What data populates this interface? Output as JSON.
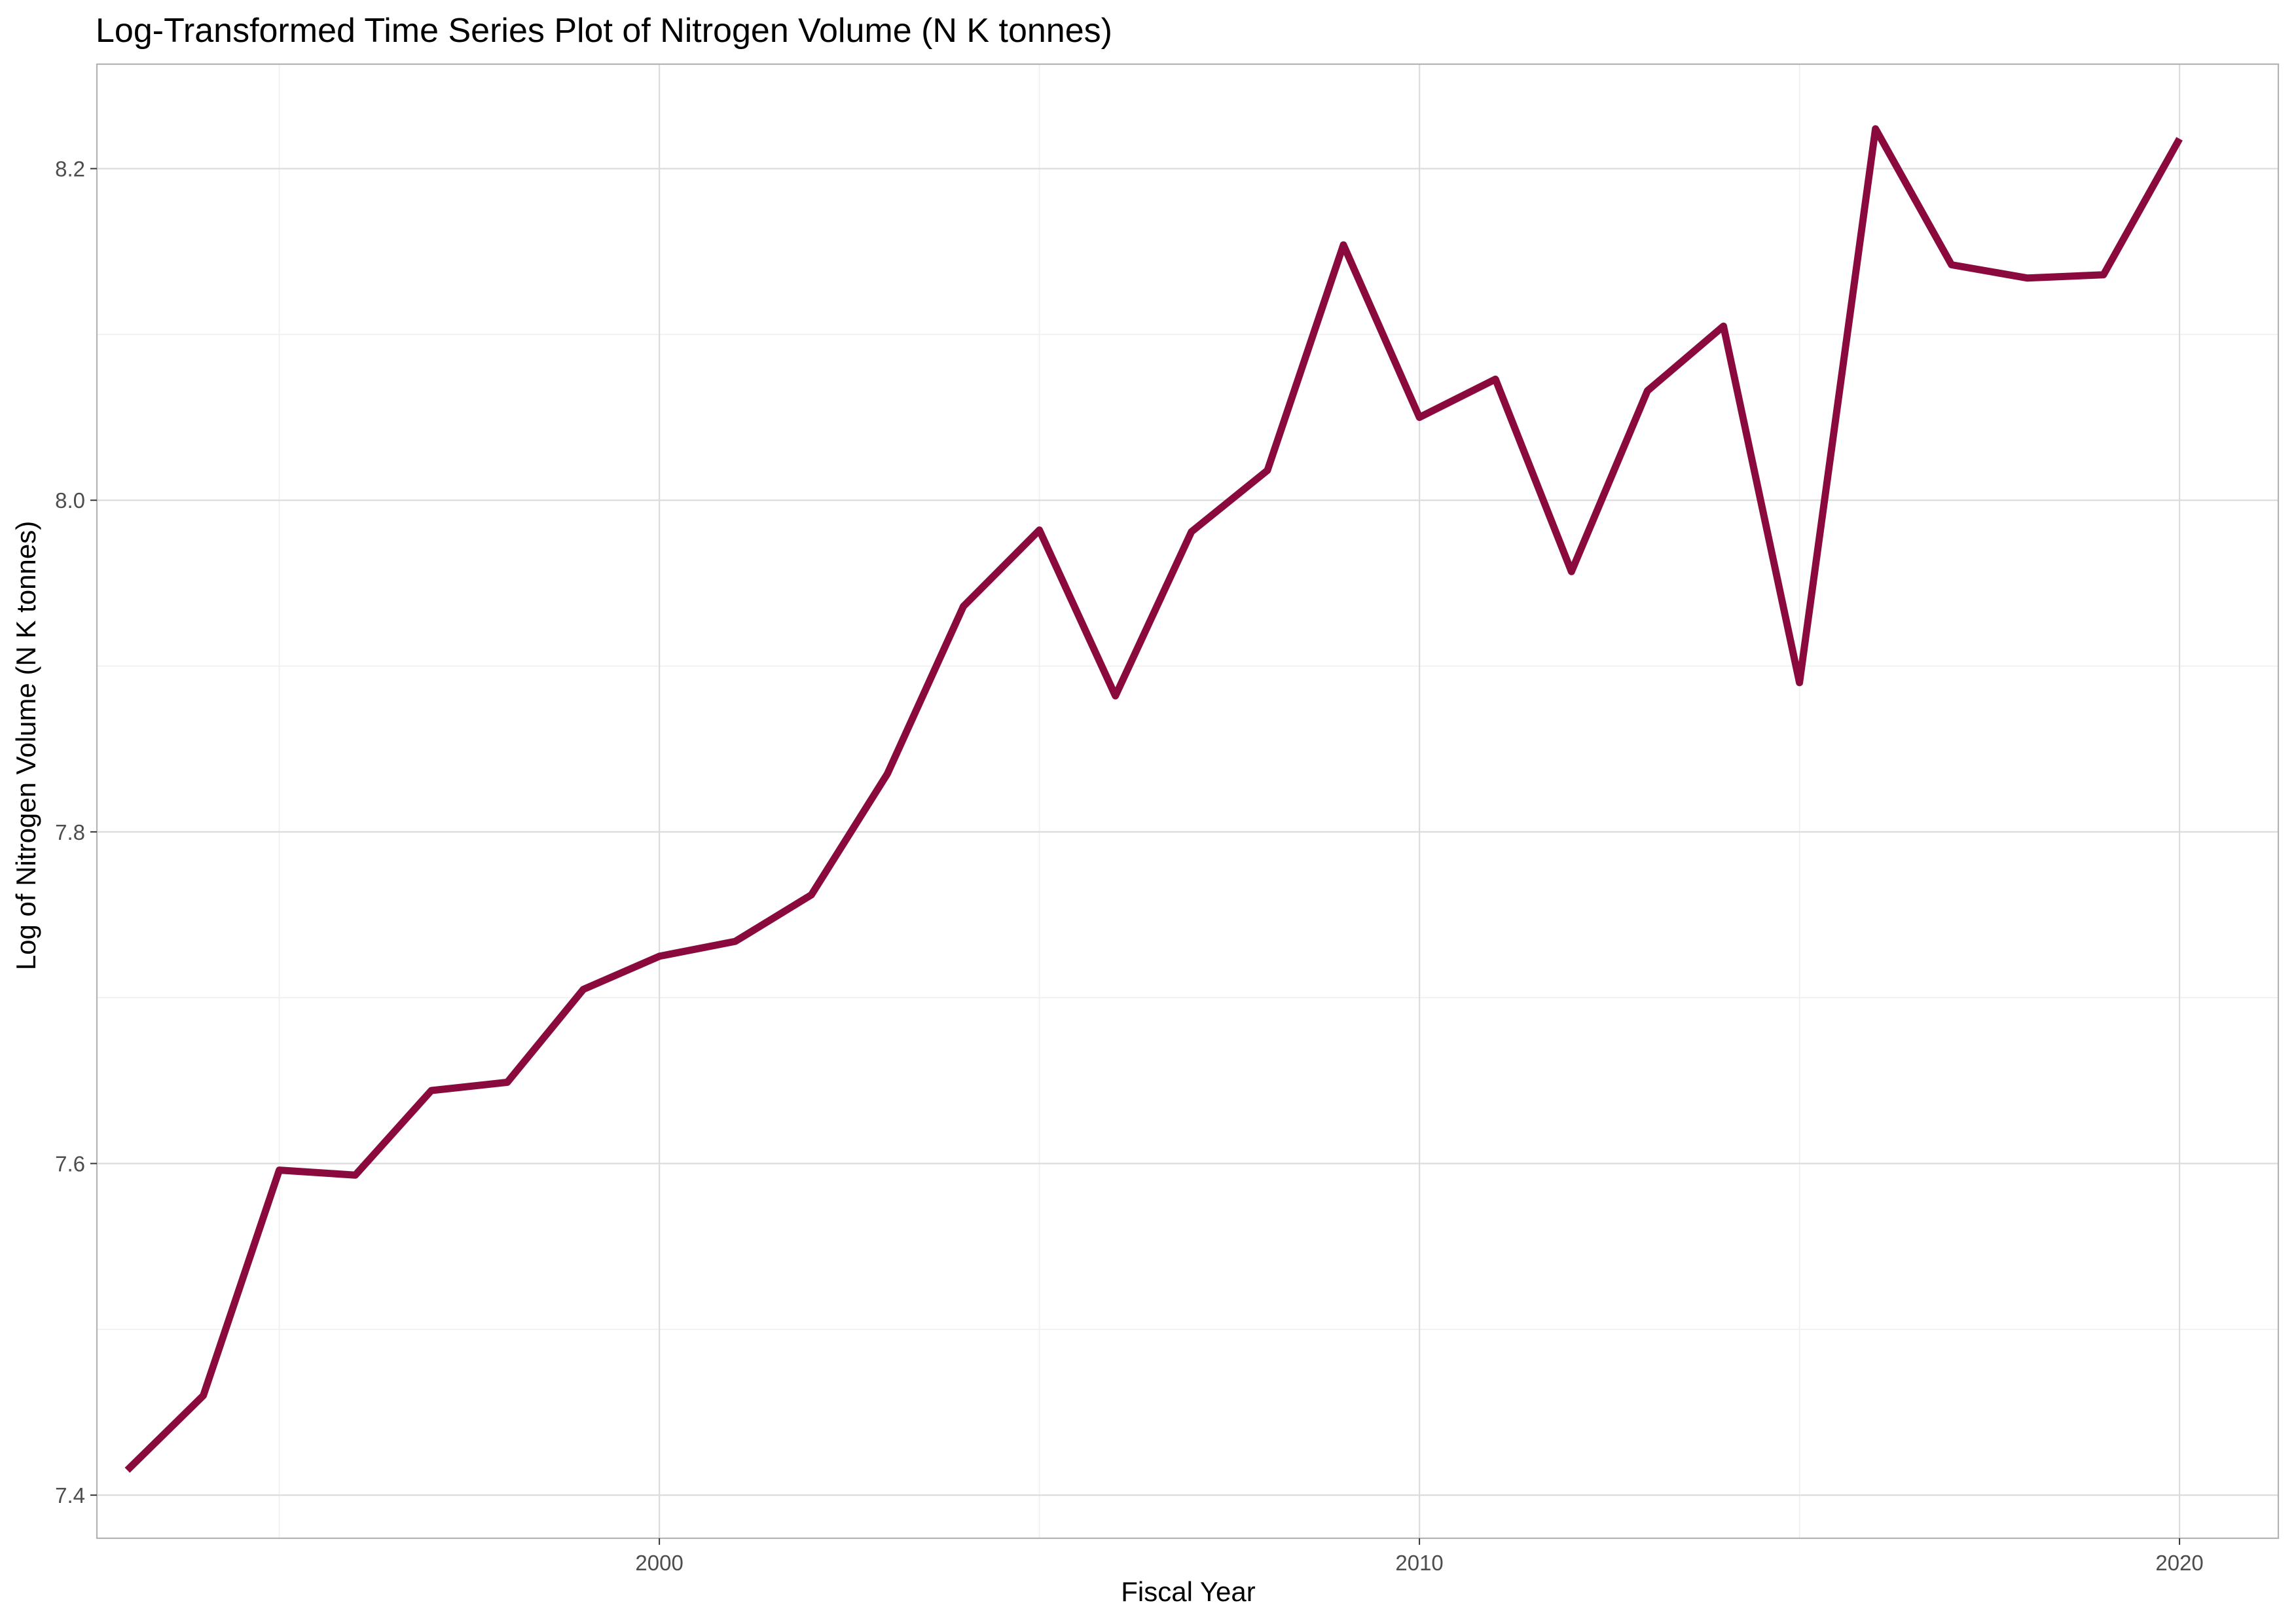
{
  "chart_data": {
    "type": "line",
    "title": "Log-Transformed Time Series Plot of Nitrogen Volume (N K tonnes)",
    "xlabel": "Fiscal Year",
    "ylabel": "Log of Nitrogen Volume (N K tonnes)",
    "xlim": [
      1992.6,
      2021.3
    ],
    "ylim": [
      7.374,
      8.263
    ],
    "x_ticks": [
      2000,
      2010,
      2020
    ],
    "x_tick_labels": [
      "2000",
      "2010",
      "2020"
    ],
    "y_ticks": [
      7.4,
      7.6,
      7.8,
      8.0,
      8.2
    ],
    "y_tick_labels": [
      "7.4",
      "7.6",
      "7.8",
      "8.0",
      "8.2"
    ],
    "grid": true,
    "legend": "none",
    "line_color": "#8b0a3e",
    "series": [
      {
        "x": [
          1993,
          1994,
          1995,
          1996,
          1997,
          1998,
          1999,
          2000,
          2001,
          2002,
          2003,
          2004,
          2005,
          2006,
          2007,
          2008,
          2009,
          2010,
          2011,
          2012,
          2013,
          2014,
          2015,
          2016,
          2017,
          2018,
          2019,
          2020
        ],
        "values": [
          7.415,
          7.46,
          7.596,
          7.593,
          7.644,
          7.649,
          7.705,
          7.725,
          7.734,
          7.762,
          7.835,
          7.936,
          7.982,
          7.882,
          7.981,
          8.018,
          8.154,
          8.05,
          8.073,
          7.957,
          8.066,
          8.105,
          7.89,
          8.224,
          8.142,
          8.134,
          8.136,
          8.218
        ]
      }
    ]
  }
}
